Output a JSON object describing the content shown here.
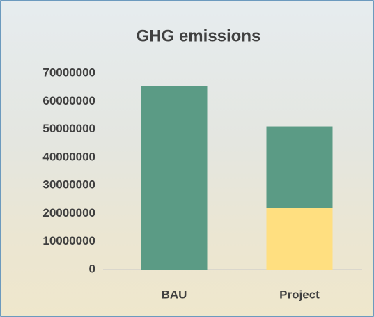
{
  "chart_data": {
    "type": "bar",
    "stacked": true,
    "title": "GHG emissions",
    "categories": [
      "BAU",
      "Project"
    ],
    "series": [
      {
        "color": "#ffdf80",
        "values": [
          null,
          22000000
        ]
      },
      {
        "color": "#5b9b85",
        "values": [
          65500000,
          29000000
        ]
      }
    ],
    "ylim": [
      0,
      70000000
    ],
    "yticks": [
      0,
      10000000,
      20000000,
      30000000,
      40000000,
      50000000,
      60000000,
      70000000
    ],
    "grid": false
  }
}
